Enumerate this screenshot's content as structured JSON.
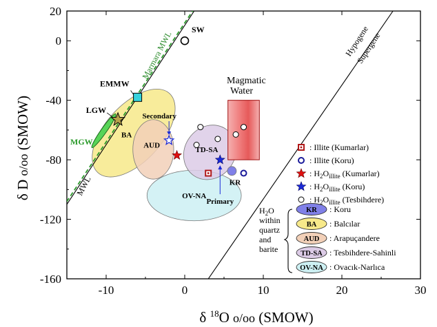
{
  "chart_data": {
    "type": "scatter",
    "title": "",
    "xlabel": {
      "pre": "δ ",
      "sup": "18",
      "post": "O ",
      "unit": "o/oo",
      "tail": " (SMOW)"
    },
    "ylabel": {
      "pre": "δ D ",
      "unit": "o/oo",
      "tail": " (SMOW)"
    },
    "xlim": [
      -15,
      30
    ],
    "ylim": [
      -160,
      20
    ],
    "xticks": [
      "-10",
      "0",
      "10",
      "20",
      "30"
    ],
    "xtick_values": [
      -10,
      0,
      10,
      20,
      30
    ],
    "yticks": [
      "20",
      "0",
      "-40",
      "-80",
      "-120",
      "-160"
    ],
    "ytick_values": [
      20,
      0,
      -40,
      -80,
      -120,
      -160
    ],
    "grid": false,
    "lines": {
      "mwl_label": "MWL",
      "marmara_mwl_label": "Marmara MWL",
      "hypogene_label": "Hypogene",
      "supergene_label": "Supergene"
    },
    "points": {
      "sw": {
        "label": "SW",
        "x": 0,
        "y": 0
      },
      "emmw": {
        "label": "EMMW",
        "x": -6,
        "y": -38
      },
      "lgw": {
        "label": "LGW",
        "x": -8.5,
        "y": -53
      },
      "mgw_label": "MGW"
    },
    "magmatic_water": {
      "label_line1": "Magmatic",
      "label_line2": "Water",
      "x0": 5.5,
      "x1": 9.5,
      "y0": -80,
      "y1": -40
    },
    "ellipses": [
      {
        "id": "BA",
        "label": "BA",
        "cx": -6.5,
        "cy": -62,
        "rx": 7,
        "ry": 16,
        "color": "#f7e98a"
      },
      {
        "id": "AUD",
        "label": "AUD",
        "cx": -4,
        "cy": -73,
        "rx": 2.6,
        "ry": 20,
        "color": "#f2d0b8"
      },
      {
        "id": "TD-SA",
        "label": "TD-SA",
        "cx": 3.2,
        "cy": -75,
        "rx": 3.6,
        "ry": 18,
        "color": "#dccbe6"
      },
      {
        "id": "OV-NA",
        "label": "OV-NA",
        "cx": 1.2,
        "cy": -104,
        "rx": 6,
        "ry": 17,
        "color": "#cdf0f3"
      },
      {
        "id": "KR",
        "label": "KR",
        "cx": 6,
        "cy": -87.5,
        "rx": 0.6,
        "ry": 3.5,
        "color": "#8080e8"
      },
      {
        "id": "MGW",
        "label": "",
        "cx": -10.3,
        "cy": -60.5,
        "rx": 0.7,
        "ry": 14,
        "color": "#58d458"
      }
    ],
    "series": [
      {
        "name": "Illite (Kumarlar)",
        "marker": "square",
        "points": [
          {
            "x": 3,
            "y": -89
          }
        ]
      },
      {
        "name": "Illite (Koru)",
        "marker": "circle-blue",
        "points": [
          {
            "x": 7.5,
            "y": -89
          }
        ]
      },
      {
        "name": "H2O illite (Kumarlar)",
        "marker": "star-red",
        "points": [
          {
            "x": -1,
            "y": -77
          }
        ]
      },
      {
        "name": "H2O illite (Koru)",
        "marker": "star-blue",
        "points": [
          {
            "x": 4.5,
            "y": -80
          }
        ]
      },
      {
        "name": "H2O illite (Tesbihdere)",
        "marker": "circle-open",
        "points": [
          {
            "x": 2,
            "y": -58
          },
          {
            "x": 4.2,
            "y": -66
          },
          {
            "x": 1.5,
            "y": -70
          },
          {
            "x": 6.5,
            "y": -63
          },
          {
            "x": 7.5,
            "y": -58
          }
        ]
      }
    ],
    "secondary_point": {
      "x": -2,
      "y": -67,
      "label": "Secondary"
    },
    "primary_label": "Primary",
    "legend": {
      "position": "right",
      "entries": [
        {
          "marker": "square",
          "text": ": Illite (Kumarlar)"
        },
        {
          "marker": "circle-blue",
          "text": ": Illite (Koru)"
        },
        {
          "marker": "star-red",
          "pre": ": H",
          "sub1": "2",
          "mid": "O",
          "sub2": "illite",
          "post": " (Kumarlar)"
        },
        {
          "marker": "star-blue",
          "pre": ": H",
          "sub1": "2",
          "mid": "O",
          "sub2": "illite",
          "post": " (Koru)"
        },
        {
          "marker": "circle-open",
          "pre": ": H",
          "sub1": "2",
          "mid": "O",
          "sub2": "illite",
          "post": " (Tesbihdere)"
        }
      ],
      "group_title": {
        "pre": "H",
        "sub": "2",
        "post": "O",
        "line2": "within",
        "line3": "quartz",
        "line4": "and",
        "line5": "barite"
      },
      "group_entries": [
        {
          "key": "KR",
          "text": ": Koru",
          "color": "#8080e8"
        },
        {
          "key": "BA",
          "text": ": Balcılar",
          "color": "#f7e98a"
        },
        {
          "key": "AUD",
          "text": ": Arapuçandere",
          "color": "#f2d0b8"
        },
        {
          "key": "TD-SA",
          "text": ": Tesbihdere-Sahinli",
          "color": "#dccbe6"
        },
        {
          "key": "OV-NA",
          "text": ": Ovacık-Narlıca",
          "color": "#cdf0f3"
        }
      ]
    }
  }
}
